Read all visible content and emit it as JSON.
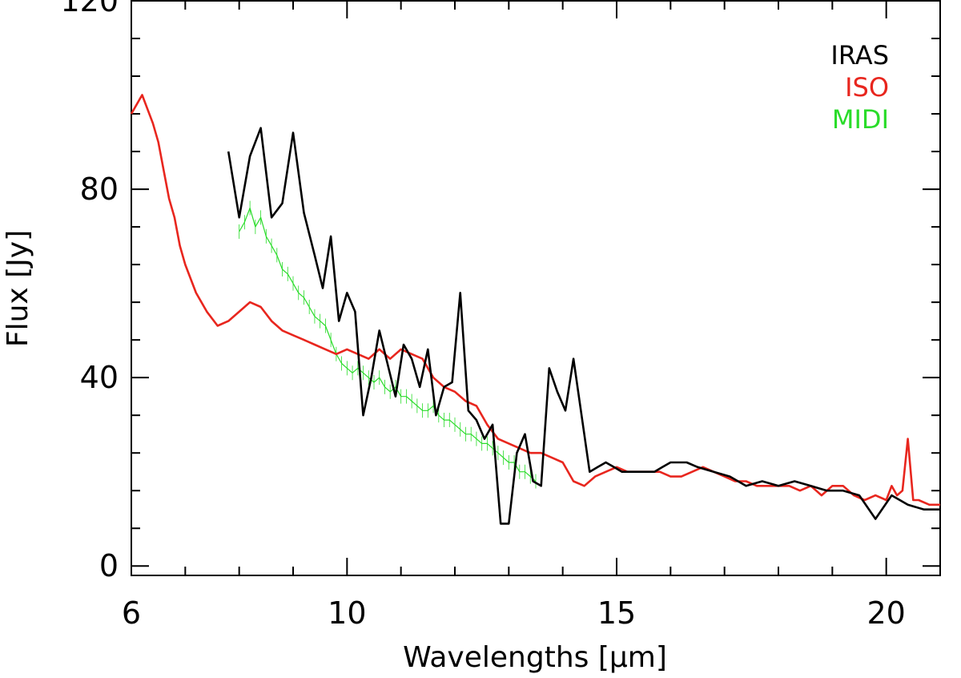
{
  "chart_data": {
    "type": "line",
    "title": "",
    "xlabel": "Wavelengths [μm]",
    "ylabel": "Flux [Jy]",
    "xlim": [
      6,
      21
    ],
    "ylim": [
      -2,
      120
    ],
    "x_ticks": [
      6,
      10,
      15,
      20
    ],
    "x_tick_labels": [
      "6",
      "10",
      "15",
      "20"
    ],
    "y_ticks": [
      0,
      40,
      80,
      120
    ],
    "y_tick_labels": [
      "0",
      "40",
      "80",
      "120"
    ],
    "grid": false,
    "legend_position": "top-right",
    "series": [
      {
        "name": "IRAS",
        "color": "#000000",
        "x": [
          7.8,
          8.0,
          8.2,
          8.4,
          8.6,
          8.8,
          9.0,
          9.2,
          9.4,
          9.55,
          9.7,
          9.85,
          10.0,
          10.15,
          10.3,
          10.45,
          10.6,
          10.75,
          10.9,
          11.05,
          11.2,
          11.35,
          11.5,
          11.65,
          11.8,
          11.95,
          12.1,
          12.25,
          12.4,
          12.55,
          12.7,
          12.85,
          13.0,
          13.15,
          13.3,
          13.45,
          13.6,
          13.75,
          13.9,
          14.05,
          14.2,
          14.35,
          14.5,
          14.65,
          14.8,
          14.95,
          15.1,
          15.25,
          15.4,
          15.55,
          15.7,
          15.85,
          16.0,
          16.15,
          16.3,
          16.5,
          16.8,
          17.1,
          17.4,
          17.7,
          18.0,
          18.3,
          18.6,
          18.9,
          19.2,
          19.5,
          19.8,
          20.1,
          20.4,
          20.7,
          21.0
        ],
        "y": [
          88,
          74,
          87,
          93,
          74,
          77,
          92,
          75,
          66,
          59,
          70,
          52,
          58,
          54,
          32,
          40,
          50,
          43,
          36,
          47,
          44,
          38,
          46,
          32,
          38,
          39,
          58,
          33,
          31,
          27,
          30,
          9,
          9,
          24,
          28,
          18,
          17,
          42,
          37,
          33,
          44,
          32,
          20,
          21,
          22,
          21,
          20,
          20,
          20,
          20,
          20,
          21,
          22,
          22,
          22,
          21,
          20,
          19,
          17,
          18,
          17,
          18,
          17,
          16,
          16,
          15,
          10,
          15,
          13,
          12,
          12
        ]
      },
      {
        "name": "ISO",
        "color": "#e8261e",
        "x": [
          6.0,
          6.1,
          6.15,
          6.2,
          6.3,
          6.4,
          6.5,
          6.6,
          6.7,
          6.8,
          6.9,
          7.0,
          7.2,
          7.4,
          7.6,
          7.8,
          8.0,
          8.2,
          8.4,
          8.6,
          8.8,
          9.0,
          9.2,
          9.4,
          9.6,
          9.8,
          10.0,
          10.2,
          10.4,
          10.6,
          10.8,
          11.0,
          11.2,
          11.4,
          11.6,
          11.8,
          12.0,
          12.2,
          12.4,
          12.6,
          12.8,
          13.0,
          13.2,
          13.4,
          13.6,
          13.8,
          14.0,
          14.2,
          14.4,
          14.6,
          14.8,
          15.0,
          15.2,
          15.4,
          15.6,
          15.8,
          16.0,
          16.2,
          16.4,
          16.6,
          16.8,
          17.0,
          17.2,
          17.4,
          17.6,
          17.8,
          18.0,
          18.2,
          18.4,
          18.6,
          18.8,
          19.0,
          19.2,
          19.4,
          19.6,
          19.8,
          20.0,
          20.1,
          20.2,
          20.3,
          20.4,
          20.5,
          20.6,
          20.8,
          21.0
        ],
        "y": [
          96,
          98,
          99,
          100,
          97,
          94,
          90,
          84,
          78,
          74,
          68,
          64,
          58,
          54,
          51,
          52,
          54,
          56,
          55,
          52,
          50,
          49,
          48,
          47,
          46,
          45,
          46,
          45,
          44,
          46,
          44,
          46,
          45,
          44,
          40,
          38,
          37,
          35,
          34,
          30,
          27,
          26,
          25,
          24,
          24,
          23,
          22,
          18,
          17,
          19,
          20,
          21,
          20,
          20,
          20,
          20,
          19,
          19,
          20,
          21,
          20,
          19,
          18,
          18,
          17,
          17,
          17,
          17,
          16,
          17,
          15,
          17,
          17,
          15,
          14,
          15,
          14,
          17,
          15,
          16,
          27,
          14,
          14,
          13,
          13
        ]
      },
      {
        "name": "MIDI",
        "color": "#2adc2a",
        "x": [
          8.0,
          8.1,
          8.2,
          8.3,
          8.4,
          8.5,
          8.6,
          8.7,
          8.8,
          8.9,
          9.0,
          9.1,
          9.2,
          9.3,
          9.4,
          9.5,
          9.6,
          9.7,
          9.8,
          9.9,
          10.0,
          10.1,
          10.2,
          10.3,
          10.4,
          10.5,
          10.6,
          10.7,
          10.8,
          10.9,
          11.0,
          11.1,
          11.2,
          11.3,
          11.4,
          11.5,
          11.6,
          11.7,
          11.8,
          11.9,
          12.0,
          12.1,
          12.2,
          12.3,
          12.4,
          12.5,
          12.6,
          12.7,
          12.8,
          12.9,
          13.0,
          13.1,
          13.2,
          13.3,
          13.4,
          13.5
        ],
        "y": [
          71,
          73,
          76,
          72,
          74,
          70,
          68,
          66,
          63,
          62,
          60,
          58,
          57,
          55,
          53,
          52,
          51,
          48,
          45,
          43,
          42,
          41,
          42,
          41,
          40,
          39,
          40,
          38,
          37,
          38,
          36,
          36,
          35,
          34,
          33,
          33,
          34,
          32,
          31,
          31,
          30,
          29,
          28,
          28,
          27,
          26,
          26,
          25,
          24,
          23,
          22,
          22,
          20,
          20,
          19,
          18
        ]
      }
    ]
  }
}
